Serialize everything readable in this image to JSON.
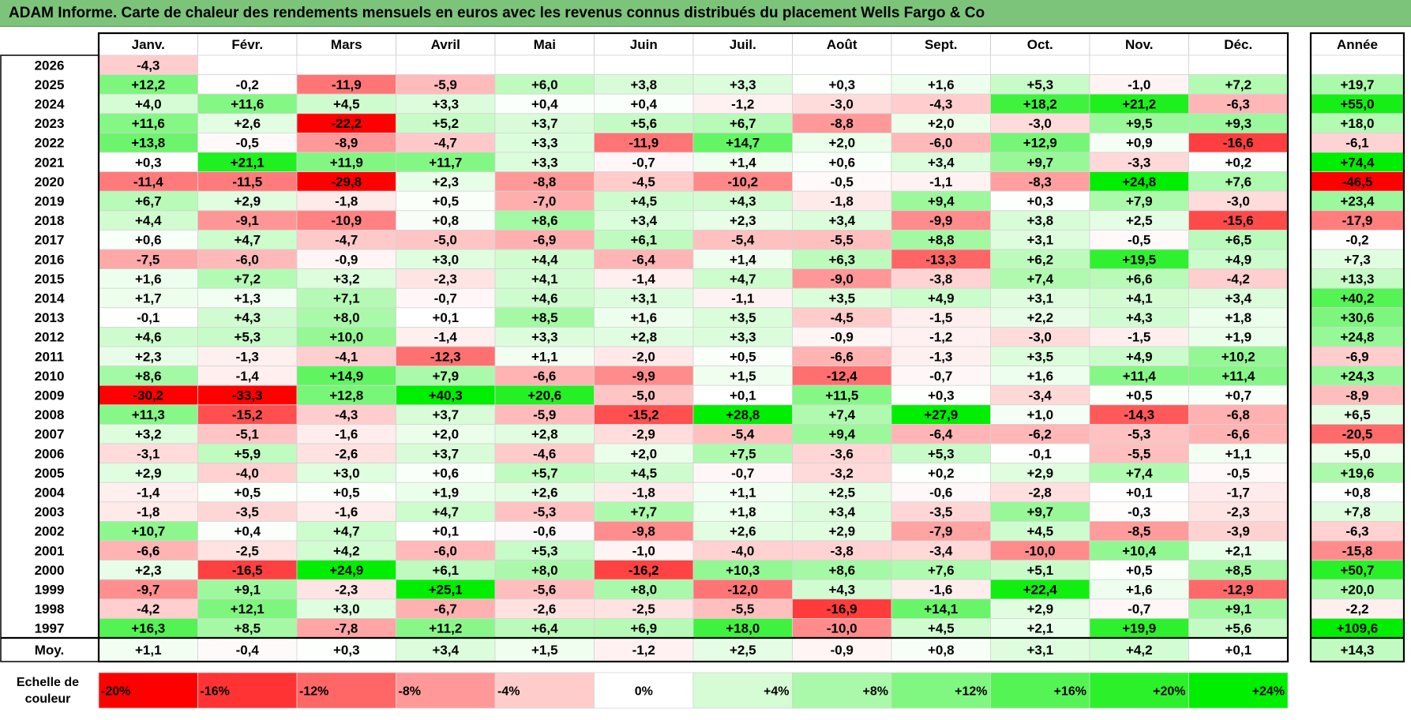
{
  "title": "ADAM Informe. Carte de chaleur des rendements mensuels en euros avec les revenus connus distribués du placement Wells Fargo & Co",
  "chart_data": {
    "type": "heatmap",
    "months": [
      "Janv.",
      "Févr.",
      "Mars",
      "Avril",
      "Mai",
      "Juin",
      "Juil.",
      "Août",
      "Sept.",
      "Oct.",
      "Nov.",
      "Déc."
    ],
    "year_header": "Année",
    "rows": [
      {
        "label": "2026",
        "values": [
          "-4,3",
          "",
          "",
          "",
          "",
          "",
          "",
          "",
          "",
          "",
          "",
          ""
        ],
        "year": ""
      },
      {
        "label": "2025",
        "values": [
          "+12,2",
          "-0,2",
          "-11,9",
          "-5,9",
          "+6,0",
          "+3,8",
          "+3,3",
          "+0,3",
          "+1,6",
          "+5,3",
          "-1,0",
          "+7,2"
        ],
        "year": "+19,7"
      },
      {
        "label": "2024",
        "values": [
          "+4,0",
          "+11,6",
          "+4,5",
          "+3,3",
          "+0,4",
          "+0,4",
          "-1,2",
          "-3,0",
          "-4,3",
          "+18,2",
          "+21,2",
          "-6,3"
        ],
        "year": "+55,0"
      },
      {
        "label": "2023",
        "values": [
          "+11,6",
          "+2,6",
          "-22,2",
          "+5,2",
          "+3,7",
          "+5,6",
          "+6,7",
          "-8,8",
          "+2,0",
          "-3,0",
          "+9,5",
          "+9,3"
        ],
        "year": "+18,0"
      },
      {
        "label": "2022",
        "values": [
          "+13,8",
          "-0,5",
          "-8,9",
          "-4,7",
          "+3,3",
          "-11,9",
          "+14,7",
          "+2,0",
          "-6,0",
          "+12,9",
          "+0,9",
          "-16,6"
        ],
        "year": "-6,1"
      },
      {
        "label": "2021",
        "values": [
          "+0,3",
          "+21,1",
          "+11,9",
          "+11,7",
          "+3,3",
          "-0,7",
          "+1,4",
          "+0,6",
          "+3,4",
          "+9,7",
          "-3,3",
          "+0,2"
        ],
        "year": "+74,4"
      },
      {
        "label": "2020",
        "values": [
          "-11,4",
          "-11,5",
          "-29,8",
          "+2,3",
          "-8,8",
          "-4,5",
          "-10,2",
          "-0,5",
          "-1,1",
          "-8,3",
          "+24,8",
          "+7,6"
        ],
        "year": "-46,5"
      },
      {
        "label": "2019",
        "values": [
          "+6,7",
          "+2,9",
          "-1,8",
          "+0,5",
          "-7,0",
          "+4,5",
          "+4,3",
          "-1,8",
          "+9,4",
          "+0,3",
          "+7,9",
          "-3,0"
        ],
        "year": "+23,4"
      },
      {
        "label": "2018",
        "values": [
          "+4,4",
          "-9,1",
          "-10,9",
          "+0,8",
          "+8,6",
          "+3,4",
          "+2,3",
          "+3,4",
          "-9,9",
          "+3,8",
          "+2,5",
          "-15,6"
        ],
        "year": "-17,9"
      },
      {
        "label": "2017",
        "values": [
          "+0,6",
          "+4,7",
          "-4,7",
          "-5,0",
          "-6,9",
          "+6,1",
          "-5,4",
          "-5,5",
          "+8,8",
          "+3,1",
          "-0,5",
          "+6,5"
        ],
        "year": "-0,2"
      },
      {
        "label": "2016",
        "values": [
          "-7,5",
          "-6,0",
          "-0,9",
          "+3,0",
          "+4,4",
          "-6,4",
          "+1,4",
          "+6,3",
          "-13,3",
          "+6,2",
          "+19,5",
          "+4,9"
        ],
        "year": "+7,3"
      },
      {
        "label": "2015",
        "values": [
          "+1,6",
          "+7,2",
          "+3,2",
          "-2,3",
          "+4,1",
          "-1,4",
          "+4,7",
          "-9,0",
          "-3,8",
          "+7,4",
          "+6,6",
          "-4,2"
        ],
        "year": "+13,3"
      },
      {
        "label": "2014",
        "values": [
          "+1,7",
          "+1,3",
          "+7,1",
          "-0,7",
          "+4,6",
          "+3,1",
          "-1,1",
          "+3,5",
          "+4,9",
          "+3,1",
          "+4,1",
          "+3,4"
        ],
        "year": "+40,2"
      },
      {
        "label": "2013",
        "values": [
          "-0,1",
          "+4,3",
          "+8,0",
          "+0,1",
          "+8,5",
          "+1,6",
          "+3,5",
          "-4,5",
          "-1,5",
          "+2,2",
          "+4,3",
          "+1,8"
        ],
        "year": "+30,6"
      },
      {
        "label": "2012",
        "values": [
          "+4,6",
          "+5,3",
          "+10,0",
          "-1,4",
          "+3,3",
          "+2,8",
          "+3,3",
          "-0,9",
          "-1,2",
          "-3,0",
          "-1,5",
          "+1,9"
        ],
        "year": "+24,8"
      },
      {
        "label": "2011",
        "values": [
          "+2,3",
          "-1,3",
          "-4,1",
          "-12,3",
          "+1,1",
          "-2,0",
          "+0,5",
          "-6,6",
          "-1,3",
          "+3,5",
          "+4,9",
          "+10,2"
        ],
        "year": "-6,9"
      },
      {
        "label": "2010",
        "values": [
          "+8,6",
          "-1,4",
          "+14,9",
          "+7,9",
          "-6,6",
          "-9,9",
          "+1,5",
          "-12,4",
          "-0,7",
          "+1,6",
          "+11,4",
          "+11,4"
        ],
        "year": "+24,3"
      },
      {
        "label": "2009",
        "values": [
          "-30,2",
          "-33,3",
          "+12,8",
          "+40,3",
          "+20,6",
          "-5,0",
          "+0,1",
          "+11,5",
          "+0,3",
          "-3,4",
          "+0,5",
          "+0,7"
        ],
        "year": "-8,9"
      },
      {
        "label": "2008",
        "values": [
          "+11,3",
          "-15,2",
          "-4,3",
          "+3,7",
          "-5,9",
          "-15,2",
          "+28,8",
          "+7,4",
          "+27,9",
          "+1,0",
          "-14,3",
          "-6,8"
        ],
        "year": "+6,5"
      },
      {
        "label": "2007",
        "values": [
          "+3,2",
          "-5,1",
          "-1,6",
          "+2,0",
          "+2,8",
          "-2,9",
          "-5,4",
          "+9,4",
          "-6,4",
          "-6,2",
          "-5,3",
          "-6,6"
        ],
        "year": "-20,5"
      },
      {
        "label": "2006",
        "values": [
          "-3,1",
          "+5,9",
          "-2,6",
          "+3,7",
          "-4,6",
          "+2,0",
          "+7,5",
          "-3,6",
          "+5,3",
          "-0,1",
          "-5,5",
          "+1,1"
        ],
        "year": "+5,0"
      },
      {
        "label": "2005",
        "values": [
          "+2,9",
          "-4,0",
          "+3,0",
          "+0,6",
          "+5,7",
          "+4,5",
          "-0,7",
          "-3,2",
          "+0,2",
          "+2,9",
          "+7,4",
          "-0,5"
        ],
        "year": "+19,6"
      },
      {
        "label": "2004",
        "values": [
          "-1,4",
          "+0,5",
          "+0,5",
          "+1,9",
          "+2,6",
          "-1,8",
          "+1,1",
          "+2,5",
          "-0,6",
          "-2,8",
          "+0,1",
          "-1,7"
        ],
        "year": "+0,8"
      },
      {
        "label": "2003",
        "values": [
          "-1,8",
          "-3,5",
          "-1,6",
          "+4,7",
          "-5,3",
          "+7,7",
          "+1,8",
          "+3,4",
          "-3,5",
          "+9,7",
          "-0,3",
          "-2,3"
        ],
        "year": "+7,8"
      },
      {
        "label": "2002",
        "values": [
          "+10,7",
          "+0,4",
          "+4,7",
          "+0,1",
          "-0,6",
          "-9,8",
          "+2,6",
          "+2,9",
          "-7,9",
          "+4,5",
          "-8,5",
          "-3,9"
        ],
        "year": "-6,3"
      },
      {
        "label": "2001",
        "values": [
          "-6,6",
          "-2,5",
          "+4,2",
          "-6,0",
          "+5,3",
          "-1,0",
          "-4,0",
          "-3,8",
          "-3,4",
          "-10,0",
          "+10,4",
          "+2,1"
        ],
        "year": "-15,8"
      },
      {
        "label": "2000",
        "values": [
          "+2,3",
          "-16,5",
          "+24,9",
          "+6,1",
          "+8,0",
          "-16,2",
          "+10,3",
          "+8,6",
          "+7,6",
          "+5,1",
          "+0,5",
          "+8,5"
        ],
        "year": "+50,7"
      },
      {
        "label": "1999",
        "values": [
          "-9,7",
          "+9,1",
          "-2,3",
          "+25,1",
          "-5,6",
          "+8,0",
          "-12,0",
          "+4,3",
          "-1,6",
          "+22,4",
          "+1,6",
          "-12,9"
        ],
        "year": "+20,0"
      },
      {
        "label": "1998",
        "values": [
          "-4,2",
          "+12,1",
          "+3,0",
          "-6,7",
          "-2,6",
          "-2,5",
          "-5,5",
          "-16,9",
          "+14,1",
          "+2,9",
          "-0,7",
          "+9,1"
        ],
        "year": "-2,2"
      },
      {
        "label": "1997",
        "values": [
          "+16,3",
          "+8,5",
          "-7,8",
          "+11,2",
          "+6,4",
          "+6,9",
          "+18,0",
          "-10,0",
          "+4,5",
          "+2,1",
          "+19,9",
          "+5,6"
        ],
        "year": "+109,6"
      }
    ],
    "average": {
      "label": "Moy.",
      "values": [
        "+1,1",
        "-0,4",
        "+0,3",
        "+3,4",
        "+1,5",
        "-1,2",
        "+2,5",
        "-0,9",
        "+0,8",
        "+3,1",
        "+4,2",
        "+0,1"
      ],
      "year": "+14,3"
    },
    "scale": {
      "label_line1": "Echelle de",
      "label_line2": "couleur",
      "stops": [
        "-20%",
        "-16%",
        "-12%",
        "-8%",
        "-4%",
        "0%",
        "+4%",
        "+8%",
        "+12%",
        "+16%",
        "+20%",
        "+24%"
      ]
    },
    "colors": {
      "max_negative": "#ff0000",
      "neutral": "#ffffff",
      "max_positive": "#00ee00",
      "title_bar": "#7cc47a"
    }
  }
}
